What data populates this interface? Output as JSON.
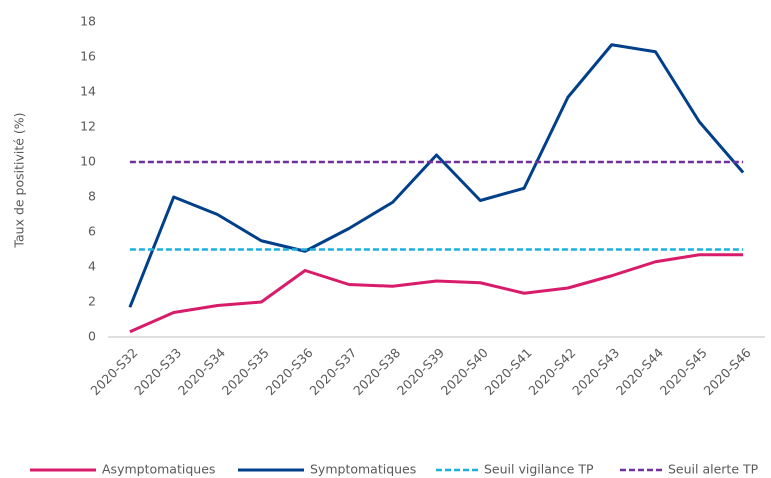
{
  "chart_data": {
    "type": "line",
    "ylabel": "Taux de positivité (%)",
    "categories": [
      "2020-S32",
      "2020-S33",
      "2020-S34",
      "2020-S35",
      "2020-S36",
      "2020-S37",
      "2020-S38",
      "2020-S39",
      "2020-S40",
      "2020-S41",
      "2020-S42",
      "2020-S43",
      "2020-S44",
      "2020-S45",
      "2020-S46"
    ],
    "series": [
      {
        "name": "Asymptomatiques",
        "color": "#d81b6a",
        "dashed": false,
        "values": [
          0.3,
          1.4,
          1.8,
          2.0,
          3.8,
          3.0,
          2.9,
          3.2,
          3.1,
          2.5,
          2.8,
          3.5,
          4.3,
          4.7,
          4.7
        ]
      },
      {
        "name": "Symptomatiques",
        "color": "#003f8a",
        "dashed": false,
        "values": [
          1.7,
          8.0,
          7.0,
          5.5,
          4.9,
          6.2,
          7.7,
          10.4,
          7.8,
          8.5,
          13.7,
          16.7,
          16.3,
          12.3,
          9.4
        ]
      },
      {
        "name": "Seuil vigilance TP",
        "color": "#1ab0e0",
        "dashed": true,
        "values": [
          5,
          5,
          5,
          5,
          5,
          5,
          5,
          5,
          5,
          5,
          5,
          5,
          5,
          5,
          5
        ]
      },
      {
        "name": "Seuil alerte TP",
        "color": "#7030a0",
        "dashed": true,
        "values": [
          10,
          10,
          10,
          10,
          10,
          10,
          10,
          10,
          10,
          10,
          10,
          10,
          10,
          10,
          10
        ]
      }
    ],
    "ylim": [
      0,
      18
    ],
    "yticks": [
      0,
      2,
      4,
      6,
      8,
      10,
      12,
      14,
      16,
      18
    ],
    "grid": false,
    "legend": "bottom"
  }
}
